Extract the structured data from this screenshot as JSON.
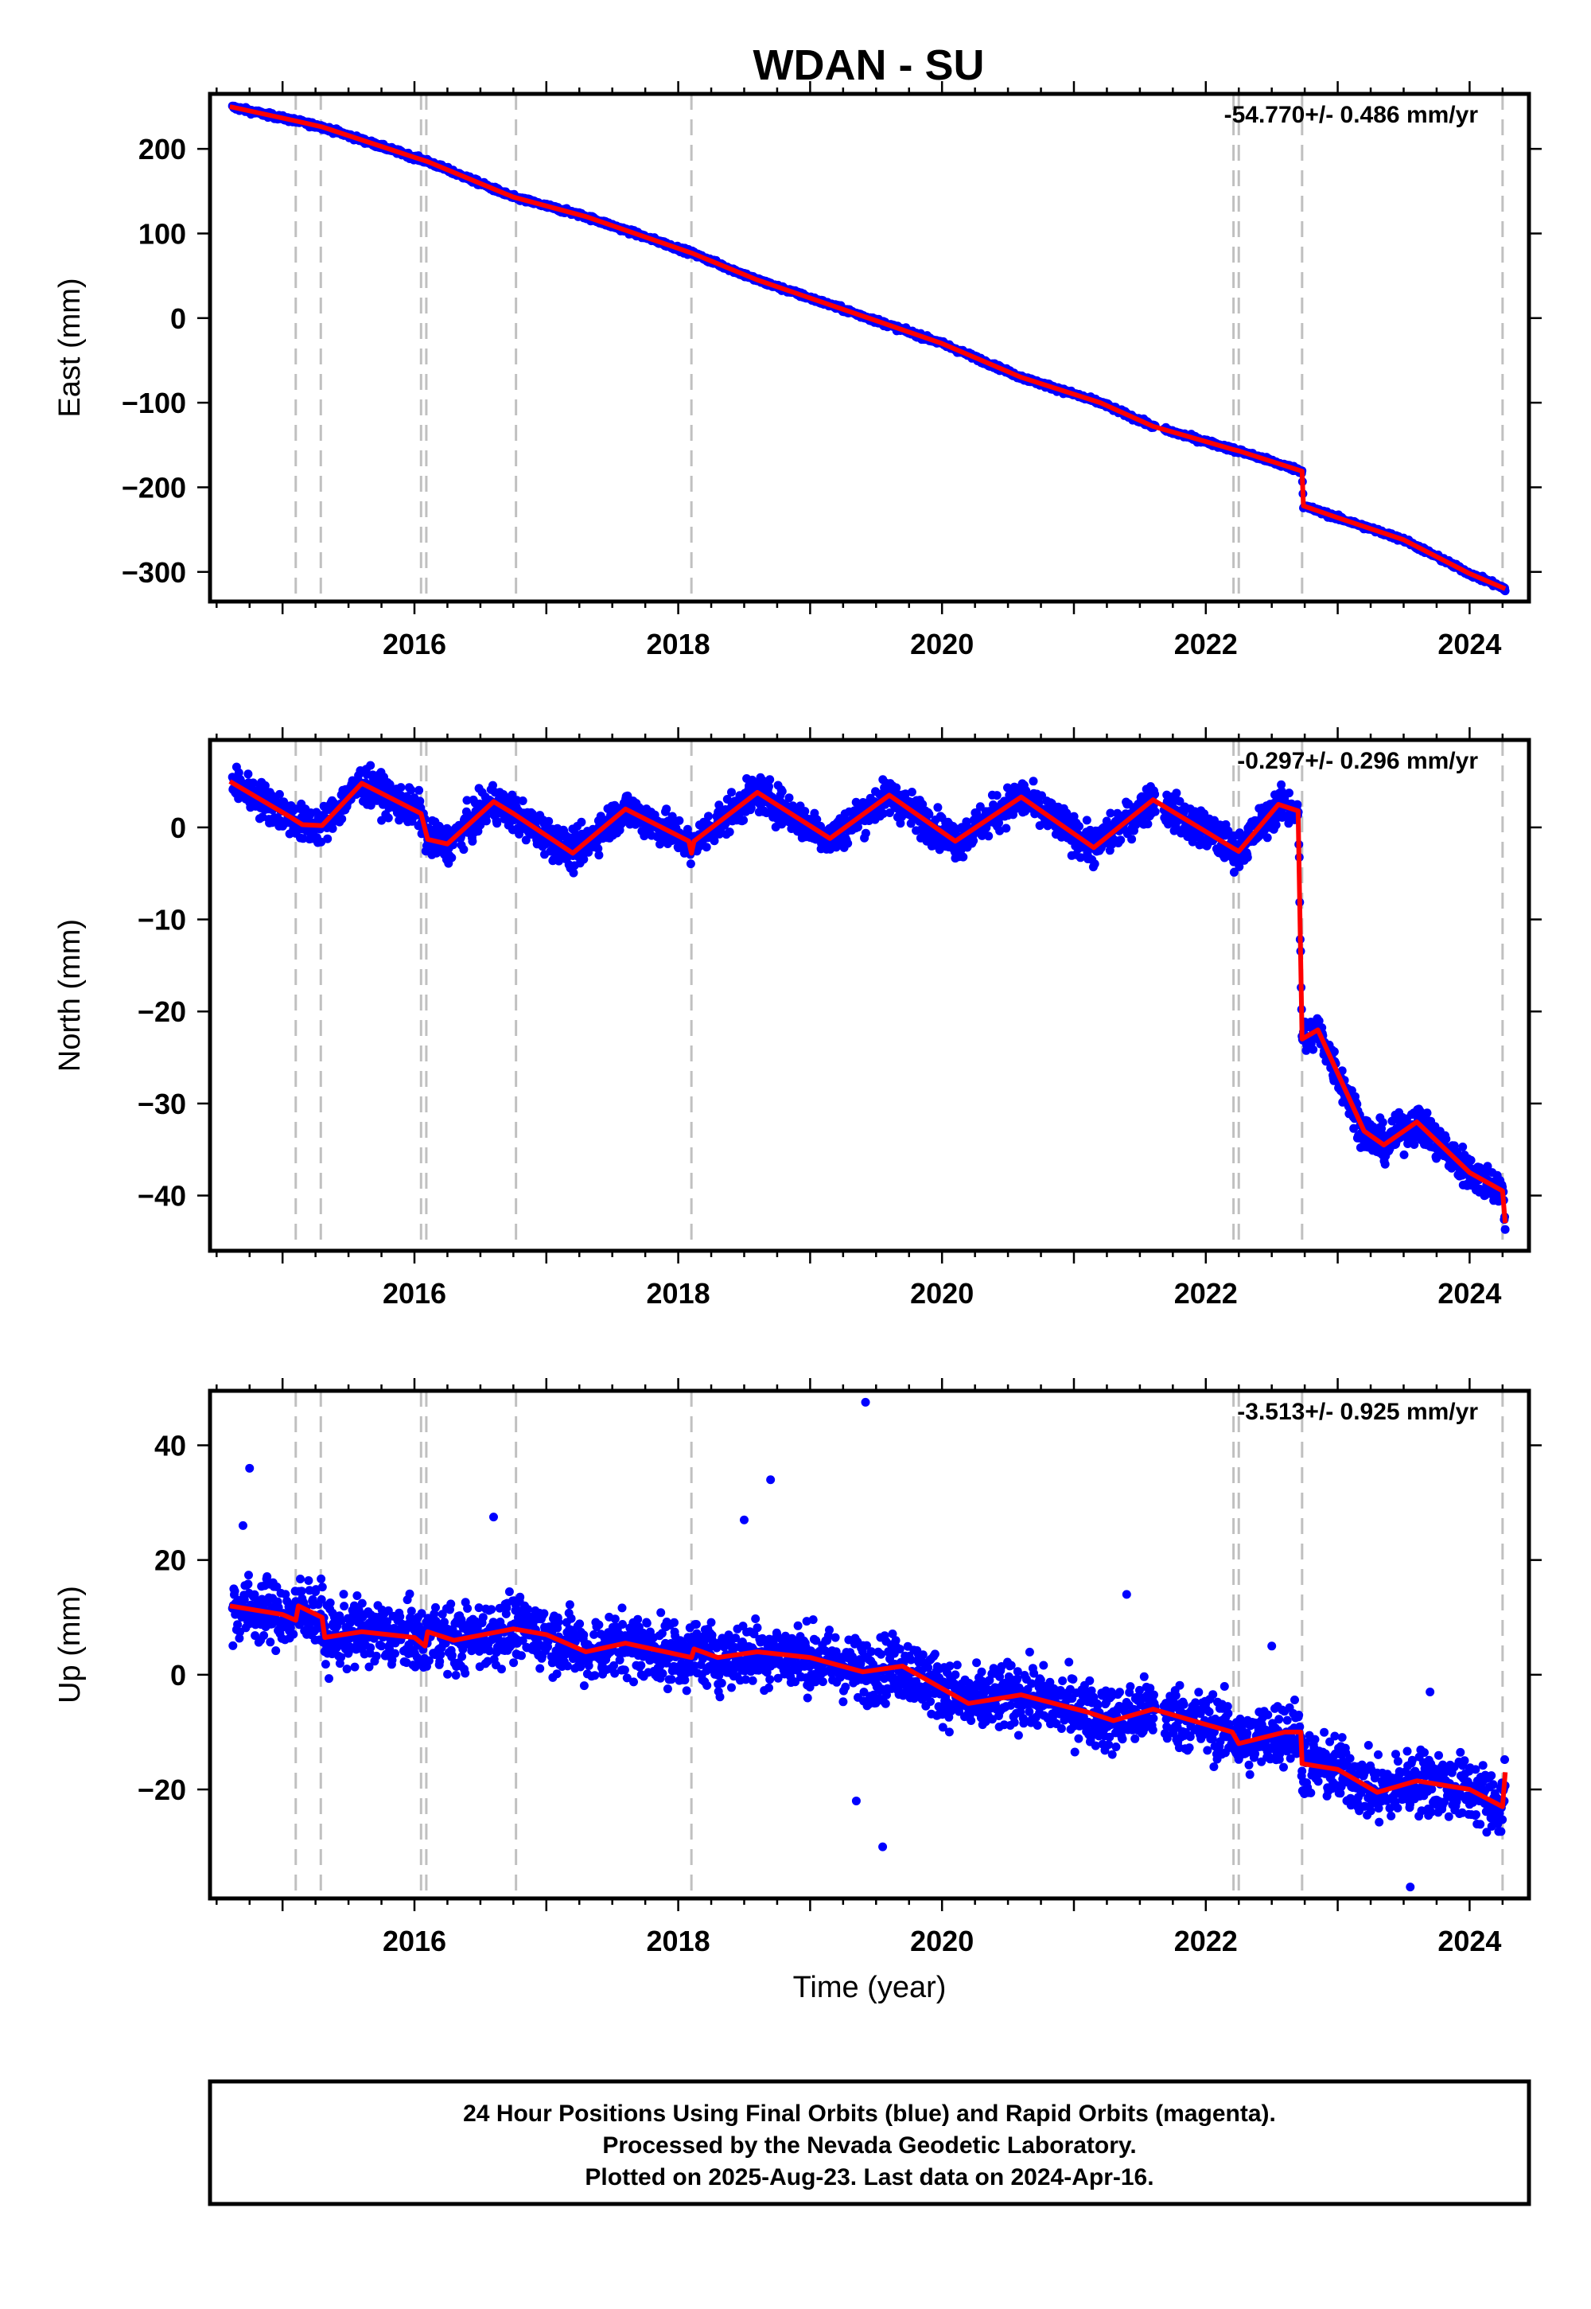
{
  "title": "WDAN - SU",
  "colors": {
    "data": "#0000ff",
    "model": "#ff0000",
    "steps": "#c0c0c0",
    "frame": "#000000"
  },
  "chart_data": [
    {
      "type": "scatter",
      "component": "east",
      "ylabel": "East (mm)",
      "xlabel": "",
      "rate_label": "-54.770+/- 0.486 mm/yr",
      "xlim": [
        2014.45,
        2024.45
      ],
      "ylim": [
        -335,
        265
      ],
      "x_ticks": [
        2016,
        2018,
        2020,
        2022,
        2024
      ],
      "x_tick_labels": [
        "2016",
        "2018",
        "2020",
        "2022",
        "2024"
      ],
      "y_ticks": [
        200,
        100,
        0,
        -100,
        -200,
        -300
      ],
      "y_tick_labels": [
        "200",
        "100",
        "0",
        "−100",
        "−200",
        "−300"
      ],
      "model_points": [
        [
          2014.6,
          250
        ],
        [
          2015.1,
          233
        ],
        [
          2015.3,
          226
        ],
        [
          2016.0,
          190
        ],
        [
          2016.1,
          185
        ],
        [
          2016.75,
          143
        ],
        [
          2017.3,
          120
        ],
        [
          2018.1,
          77
        ],
        [
          2018.6,
          45
        ],
        [
          2019.5,
          -3
        ],
        [
          2020.0,
          -30
        ],
        [
          2020.6,
          -70
        ],
        [
          2021.2,
          -100
        ],
        [
          2021.6,
          -128
        ],
        [
          2022.2,
          -155
        ],
        [
          2022.25,
          -157
        ],
        [
          2022.73,
          -181
        ],
        [
          2022.74,
          -222
        ],
        [
          2023.0,
          -236
        ],
        [
          2023.5,
          -262
        ],
        [
          2024.0,
          -302
        ],
        [
          2024.27,
          -320
        ]
      ],
      "outliers": []
    },
    {
      "type": "scatter",
      "component": "north",
      "ylabel": "North (mm)",
      "xlabel": "",
      "rate_label": "-0.297+/- 0.296 mm/yr",
      "xlim": [
        2014.45,
        2024.45
      ],
      "ylim": [
        -46,
        9.5
      ],
      "x_ticks": [
        2016,
        2018,
        2020,
        2022,
        2024
      ],
      "x_tick_labels": [
        "2016",
        "2018",
        "2020",
        "2022",
        "2024"
      ],
      "y_ticks": [
        0,
        -10,
        -20,
        -30,
        -40
      ],
      "y_tick_labels": [
        "0",
        "−10",
        "−20",
        "−30",
        "−40"
      ],
      "model_points": [
        [
          2014.6,
          5
        ],
        [
          2015.05,
          1.2
        ],
        [
          2015.15,
          0.3
        ],
        [
          2015.3,
          0.2
        ],
        [
          2015.6,
          4.8
        ],
        [
          2016.05,
          1.5
        ],
        [
          2016.1,
          -1.3
        ],
        [
          2016.25,
          -1.8
        ],
        [
          2016.6,
          2.8
        ],
        [
          2016.75,
          1.5
        ],
        [
          2017.2,
          -2.8
        ],
        [
          2017.6,
          2.0
        ],
        [
          2018.08,
          -1.5
        ],
        [
          2018.1,
          -2.8
        ],
        [
          2018.12,
          -1.5
        ],
        [
          2018.6,
          3.8
        ],
        [
          2019.15,
          -1.2
        ],
        [
          2019.6,
          3.5
        ],
        [
          2020.1,
          -1.5
        ],
        [
          2020.6,
          3.3
        ],
        [
          2021.15,
          -2.2
        ],
        [
          2021.6,
          3.0
        ],
        [
          2022.2,
          -2.2
        ],
        [
          2022.25,
          -2.6
        ],
        [
          2022.55,
          2.5
        ],
        [
          2022.7,
          1.8
        ],
        [
          2022.73,
          -23
        ],
        [
          2022.85,
          -22
        ],
        [
          2023.2,
          -33
        ],
        [
          2023.35,
          -34.5
        ],
        [
          2023.6,
          -32
        ],
        [
          2024.0,
          -37.5
        ],
        [
          2024.25,
          -39.5
        ],
        [
          2024.27,
          -43
        ]
      ],
      "outliers": []
    },
    {
      "type": "scatter",
      "component": "up",
      "ylabel": "Up (mm)",
      "xlabel": "Time (year)",
      "rate_label": "-3.513+/- 0.925 mm/yr",
      "xlim": [
        2014.45,
        2024.45
      ],
      "ylim": [
        -39,
        49.5
      ],
      "x_ticks": [
        2016,
        2018,
        2020,
        2022,
        2024
      ],
      "x_tick_labels": [
        "2016",
        "2018",
        "2020",
        "2022",
        "2024"
      ],
      "y_ticks": [
        40,
        20,
        0,
        -20
      ],
      "y_tick_labels": [
        "40",
        "20",
        "0",
        "−20"
      ],
      "model_points": [
        [
          2014.6,
          12
        ],
        [
          2015.0,
          10.5
        ],
        [
          2015.1,
          9.5
        ],
        [
          2015.12,
          12
        ],
        [
          2015.3,
          10
        ],
        [
          2015.32,
          6.5
        ],
        [
          2015.6,
          7.5
        ],
        [
          2016.0,
          6.5
        ],
        [
          2016.08,
          5
        ],
        [
          2016.1,
          7.5
        ],
        [
          2016.3,
          6
        ],
        [
          2016.75,
          8
        ],
        [
          2017.0,
          7
        ],
        [
          2017.3,
          4
        ],
        [
          2017.6,
          5.5
        ],
        [
          2018.1,
          3
        ],
        [
          2018.12,
          4.5
        ],
        [
          2018.3,
          3
        ],
        [
          2018.6,
          4
        ],
        [
          2019.0,
          3
        ],
        [
          2019.4,
          0.5
        ],
        [
          2019.7,
          1.5
        ],
        [
          2020.2,
          -5
        ],
        [
          2020.6,
          -3.5
        ],
        [
          2021.1,
          -6.5
        ],
        [
          2021.3,
          -8
        ],
        [
          2021.6,
          -6
        ],
        [
          2022.2,
          -10
        ],
        [
          2022.25,
          -12
        ],
        [
          2022.6,
          -10
        ],
        [
          2022.72,
          -10
        ],
        [
          2022.73,
          -15.5
        ],
        [
          2023.0,
          -16.5
        ],
        [
          2023.3,
          -20.5
        ],
        [
          2023.6,
          -18.5
        ],
        [
          2024.0,
          -20
        ],
        [
          2024.25,
          -23
        ],
        [
          2024.27,
          -17
        ]
      ],
      "outliers": [
        [
          2014.75,
          36
        ],
        [
          2019.42,
          47.5
        ],
        [
          2018.7,
          34
        ],
        [
          2018.5,
          27
        ],
        [
          2019.35,
          -22
        ],
        [
          2019.55,
          -30
        ],
        [
          2023.55,
          -37
        ],
        [
          2016.6,
          27.5
        ],
        [
          2014.7,
          26
        ],
        [
          2021.4,
          14
        ],
        [
          2022.5,
          5
        ],
        [
          2023.7,
          -3
        ]
      ]
    }
  ],
  "step_epochs": [
    2015.1,
    2015.29,
    2016.05,
    2016.09,
    2016.77,
    2018.1,
    2022.21,
    2022.25,
    2022.73,
    2024.25
  ],
  "footer": {
    "line1": "24 Hour Positions Using Final Orbits (blue) and Rapid Orbits (magenta).",
    "line2": "Processed by the Nevada Geodetic Laboratory.",
    "line3": "Plotted on 2025-Aug-23. Last data on 2024-Apr-16."
  }
}
